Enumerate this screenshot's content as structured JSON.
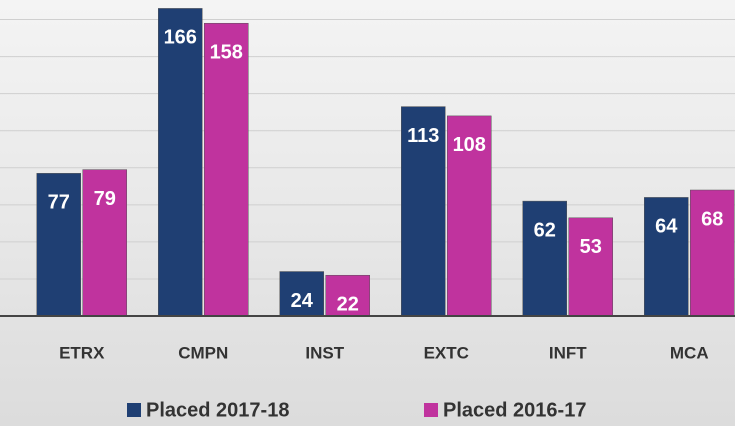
{
  "chart_data": {
    "type": "bar",
    "categories": [
      "ETRX",
      "CMPN",
      "INST",
      "EXTC",
      "INFT",
      "MCA"
    ],
    "series": [
      {
        "name": "Placed 2017-18",
        "color": "#1f3f73",
        "values": [
          77,
          166,
          24,
          113,
          62,
          64
        ]
      },
      {
        "name": "Placed 2016-17",
        "color": "#c0339e",
        "values": [
          79,
          158,
          22,
          108,
          53,
          68
        ]
      }
    ],
    "ylim": [
      0,
      170
    ],
    "yticks": [
      0,
      20,
      40,
      60,
      80,
      100,
      120,
      140,
      160
    ],
    "grid": true,
    "legend": "bottom"
  }
}
